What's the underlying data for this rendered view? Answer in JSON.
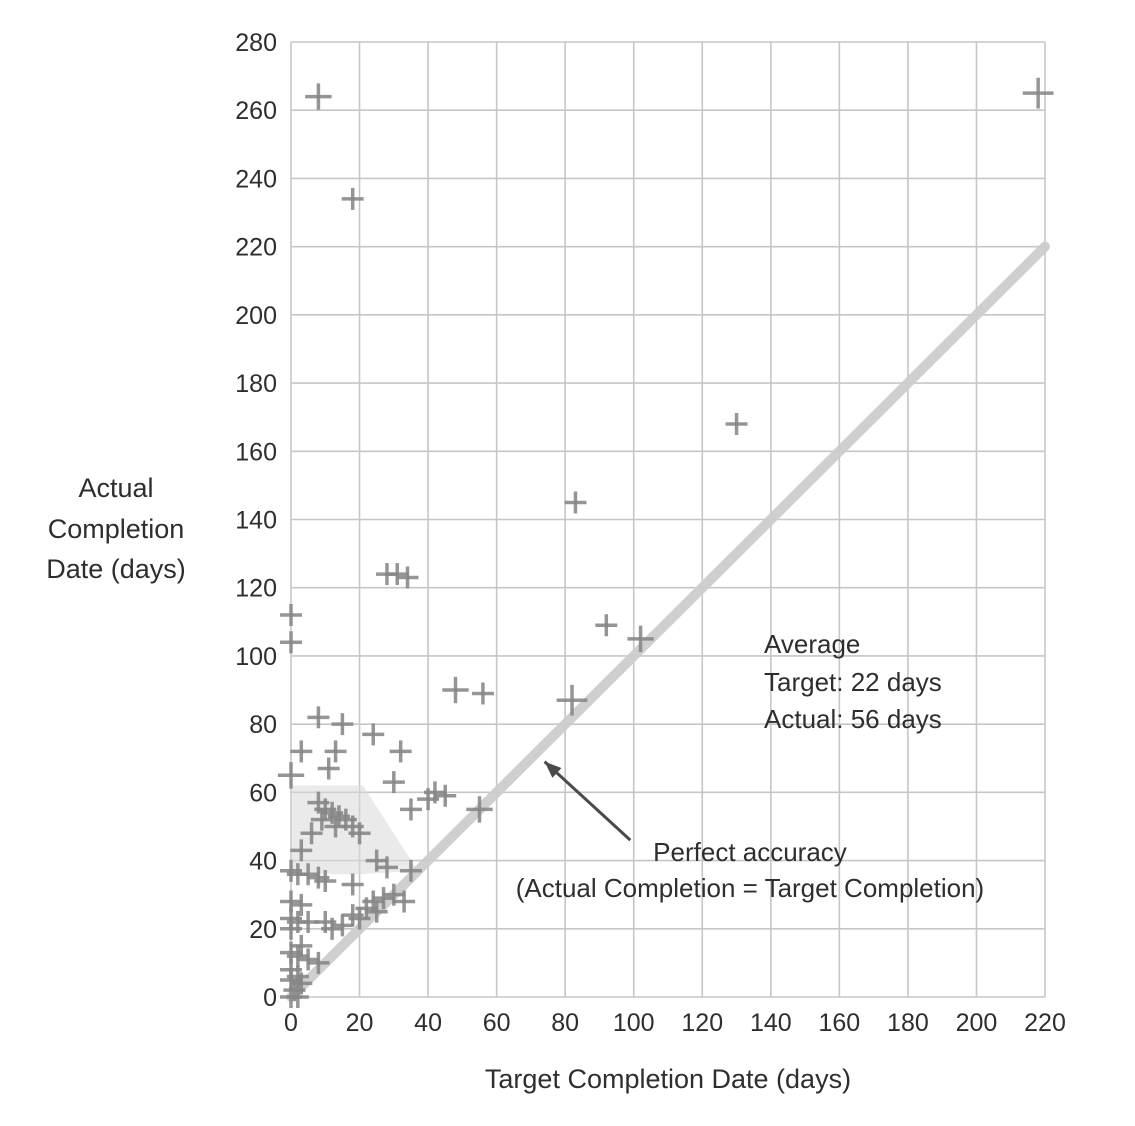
{
  "chart_data": {
    "type": "scatter",
    "title": "",
    "xlabel": "Target Completion Date (days)",
    "ylabel": "Actual\nCompletion\nDate (days)",
    "xlim": [
      0,
      220
    ],
    "ylim": [
      0,
      280
    ],
    "x_ticks": [
      0,
      20,
      40,
      60,
      80,
      100,
      120,
      140,
      160,
      180,
      200,
      220
    ],
    "y_ticks": [
      0,
      20,
      40,
      60,
      80,
      100,
      120,
      140,
      160,
      180,
      200,
      220,
      240,
      260,
      280
    ],
    "grid": true,
    "legend": "none",
    "marker": "plus",
    "marker_color": "#878787",
    "grid_color": "#c6c6c6",
    "reference_line": {
      "name": "perfect-accuracy-line",
      "from": [
        0,
        0
      ],
      "to": [
        220,
        220
      ],
      "color": "#cdcdcd"
    },
    "shade_polygon": [
      [
        0,
        36
      ],
      [
        0,
        62
      ],
      [
        21,
        62
      ],
      [
        37,
        37
      ],
      [
        20,
        36
      ]
    ],
    "shade_color": "#d9d9d9",
    "annotations": {
      "average": {
        "lines": [
          "Average",
          "Target: 22 days",
          "Actual: 56 days"
        ]
      },
      "perfect": {
        "lines": [
          "Perfect accuracy",
          "(Actual Completion = Target Completion)"
        ]
      },
      "arrow": {
        "from_x": 99,
        "from_y": 46,
        "to_x": 74,
        "to_y": 69,
        "color": "#4a4a4a"
      }
    },
    "points": [
      [
        8,
        264,
        1.2
      ],
      [
        18,
        234
      ],
      [
        218,
        265,
        1.4
      ],
      [
        130,
        168
      ],
      [
        83,
        145
      ],
      [
        28,
        124
      ],
      [
        31,
        124
      ],
      [
        34,
        123
      ],
      [
        92,
        109
      ],
      [
        102,
        105,
        1.2
      ],
      [
        0,
        112
      ],
      [
        0,
        104
      ],
      [
        48,
        90,
        1.2
      ],
      [
        56,
        89
      ],
      [
        82,
        87,
        1.4
      ],
      [
        8,
        82
      ],
      [
        15,
        80
      ],
      [
        24,
        77
      ],
      [
        3,
        72
      ],
      [
        13,
        72
      ],
      [
        32,
        72
      ],
      [
        11,
        67
      ],
      [
        0,
        65,
        1.2
      ],
      [
        30,
        63
      ],
      [
        42,
        60
      ],
      [
        45,
        59
      ],
      [
        40,
        58
      ],
      [
        35,
        55
      ],
      [
        55,
        55,
        1.2
      ],
      [
        8,
        57
      ],
      [
        10,
        55
      ],
      [
        12,
        54
      ],
      [
        14,
        53
      ],
      [
        9,
        52
      ],
      [
        16,
        52
      ],
      [
        13,
        50
      ],
      [
        18,
        50
      ],
      [
        6,
        48
      ],
      [
        20,
        48
      ],
      [
        3,
        43
      ],
      [
        25,
        40
      ],
      [
        28,
        38
      ],
      [
        35,
        37
      ],
      [
        0,
        37
      ],
      [
        2,
        36
      ],
      [
        5,
        36
      ],
      [
        8,
        35
      ],
      [
        10,
        34
      ],
      [
        18,
        33
      ],
      [
        30,
        30
      ],
      [
        27,
        29
      ],
      [
        33,
        28
      ],
      [
        24,
        28
      ],
      [
        0,
        28
      ],
      [
        3,
        27
      ],
      [
        22,
        26
      ],
      [
        25,
        25
      ],
      [
        18,
        24
      ],
      [
        20,
        23
      ],
      [
        0,
        23
      ],
      [
        2,
        22
      ],
      [
        5,
        22
      ],
      [
        10,
        22
      ],
      [
        15,
        21
      ],
      [
        12,
        20
      ],
      [
        0,
        20
      ],
      [
        3,
        15
      ],
      [
        0,
        13
      ],
      [
        2,
        12
      ],
      [
        5,
        11
      ],
      [
        8,
        10
      ],
      [
        0,
        8
      ],
      [
        2,
        6
      ],
      [
        0,
        5
      ],
      [
        3,
        4
      ],
      [
        1,
        2
      ],
      [
        0,
        0
      ],
      [
        2,
        0
      ]
    ]
  }
}
